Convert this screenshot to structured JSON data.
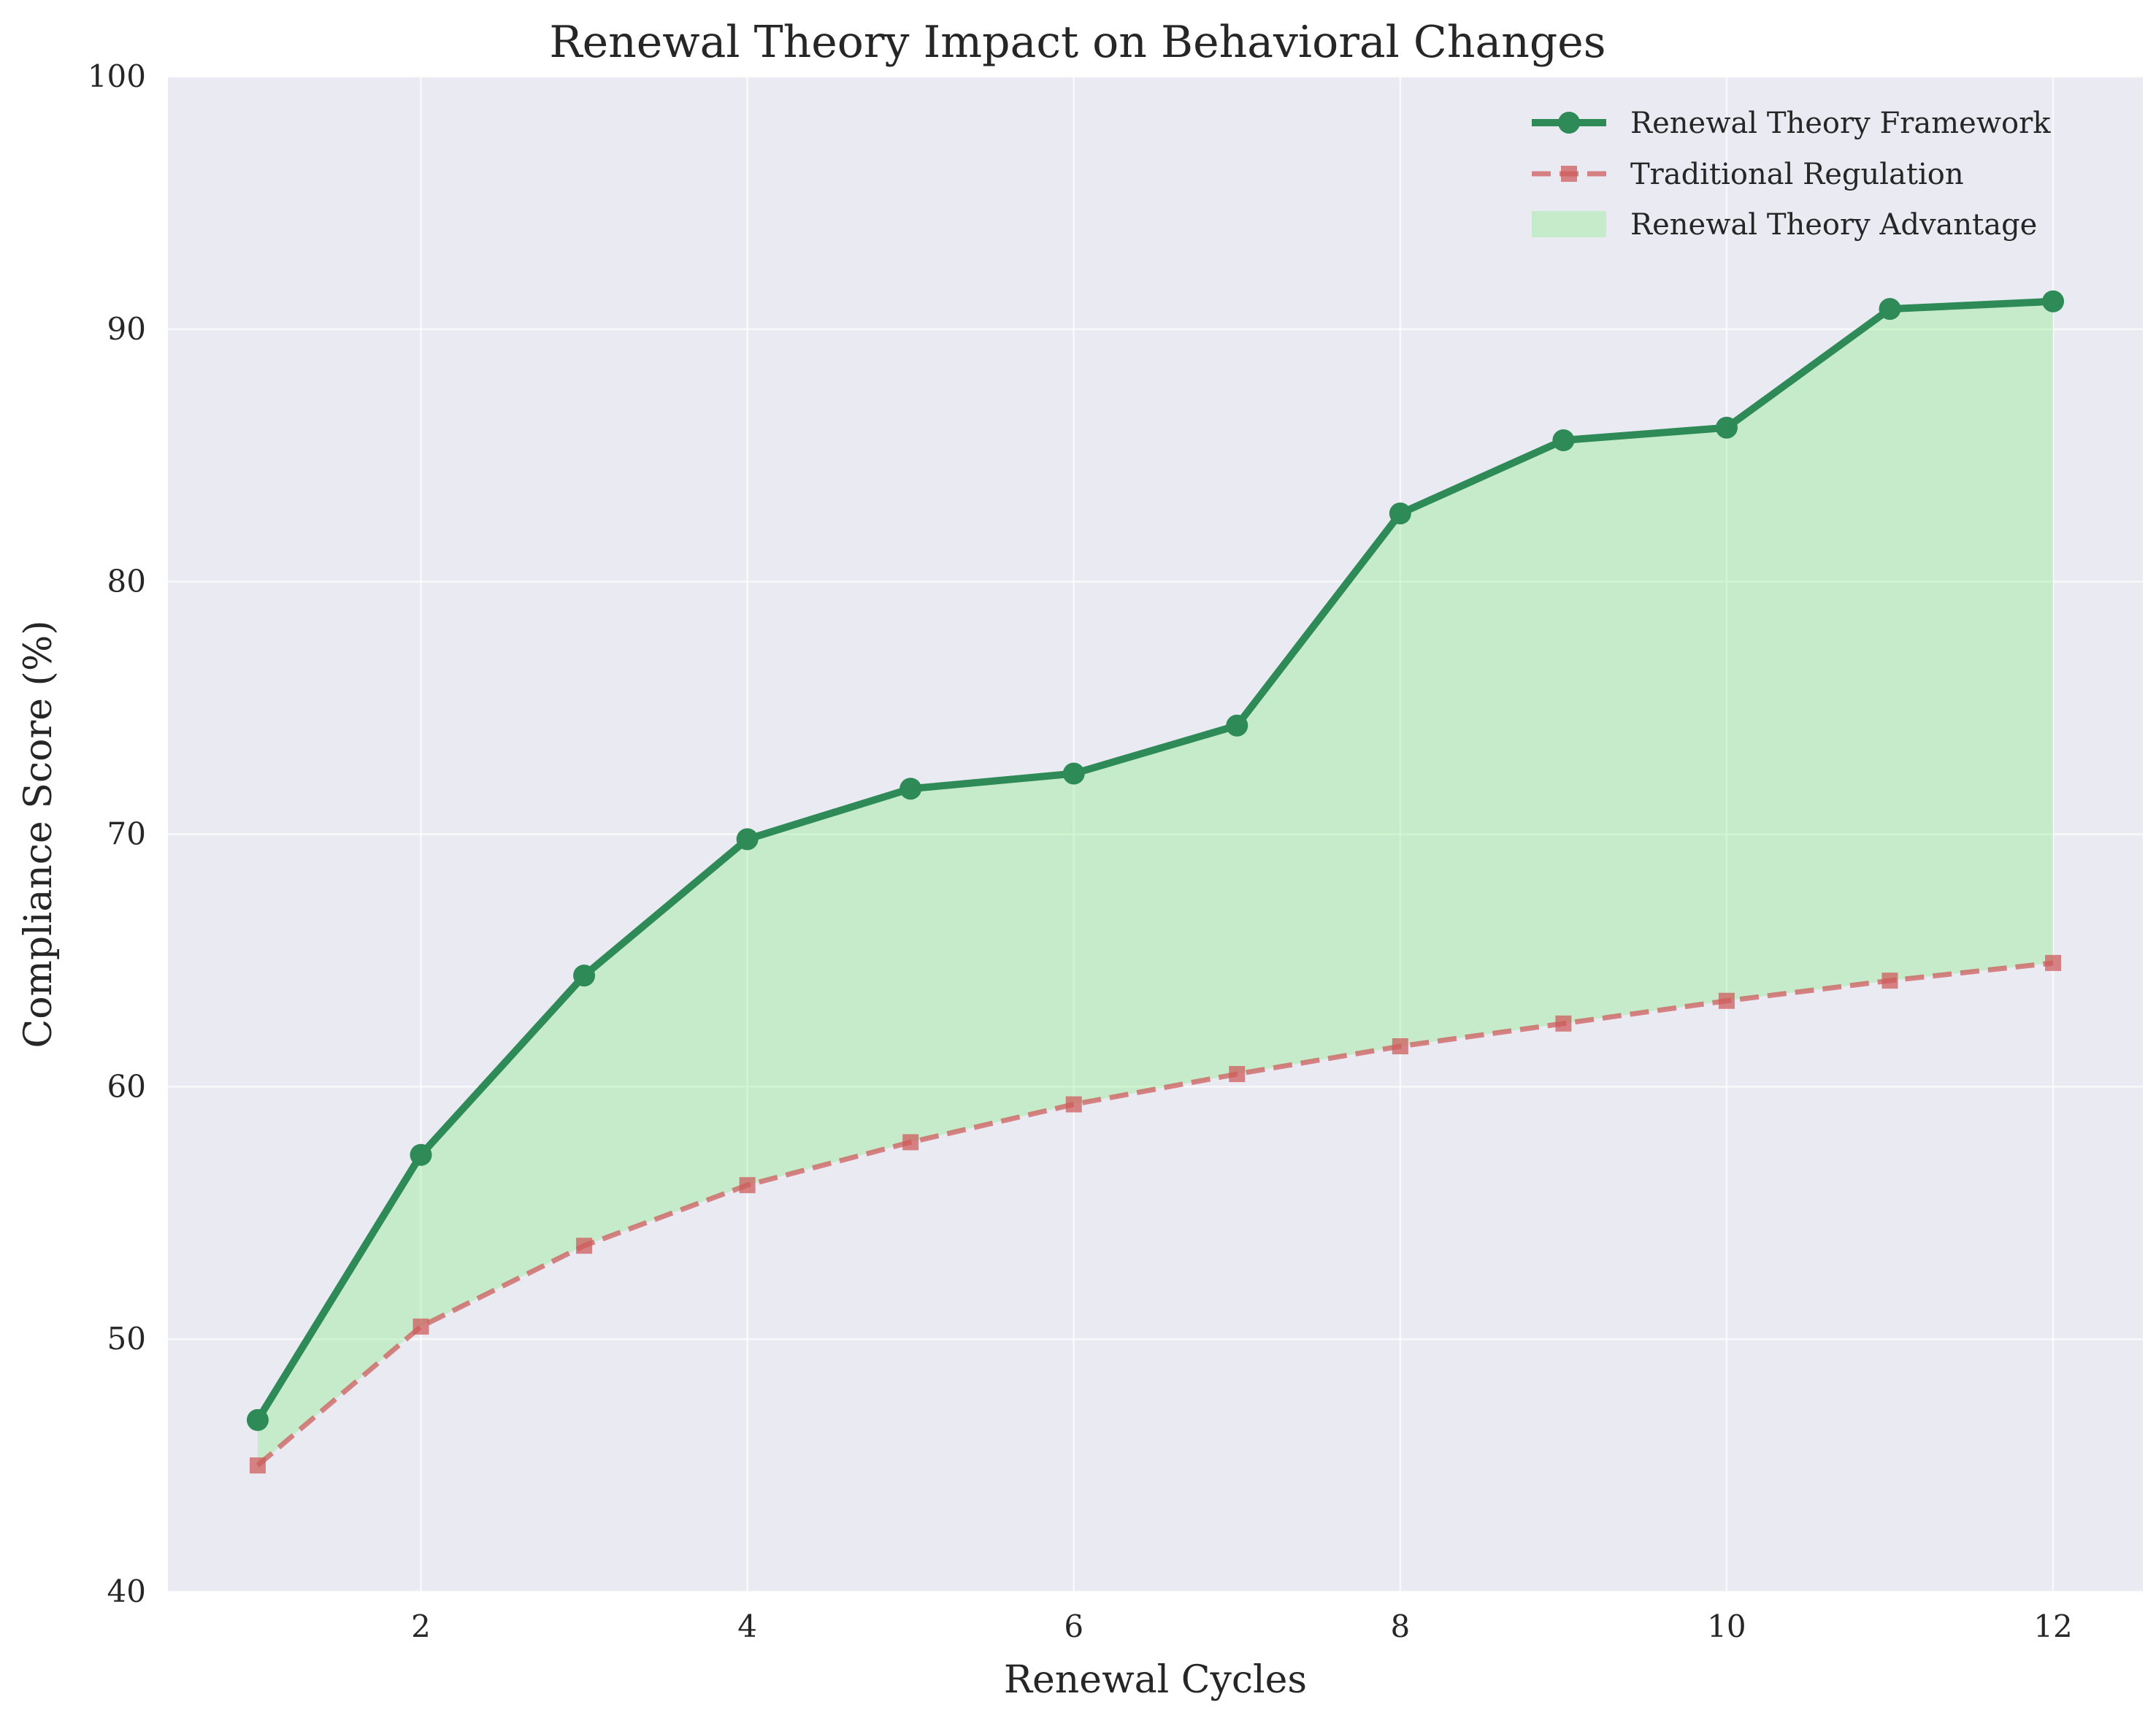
{
  "chart_data": {
    "type": "line",
    "title": "Renewal Theory Impact on Behavioral Changes",
    "xlabel": "Renewal Cycles",
    "ylabel": "Compliance Score (%)",
    "x": [
      1,
      2,
      3,
      4,
      5,
      6,
      7,
      8,
      9,
      10,
      11,
      12
    ],
    "xlim": [
      0.45,
      12.55
    ],
    "ylim": [
      40,
      100
    ],
    "x_ticks": [
      2,
      4,
      6,
      8,
      10,
      12
    ],
    "y_ticks": [
      40,
      50,
      60,
      70,
      80,
      90,
      100
    ],
    "grid": true,
    "legend_position": "top-right",
    "series": [
      {
        "name": "Renewal Theory Framework",
        "values": [
          46.8,
          57.3,
          64.4,
          69.8,
          71.8,
          72.4,
          74.3,
          82.7,
          85.6,
          86.1,
          90.8,
          91.1
        ],
        "color": "#2e8b57",
        "style": "solid",
        "marker": "circle"
      },
      {
        "name": "Traditional Regulation",
        "values": [
          45.0,
          50.5,
          53.7,
          56.1,
          57.8,
          59.3,
          60.5,
          61.6,
          62.5,
          63.4,
          64.2,
          64.9
        ],
        "color": "#cd5c5c",
        "style": "dashed",
        "marker": "square"
      }
    ],
    "fill_between": {
      "name": "Renewal Theory Advantage",
      "color": "#90ee90"
    },
    "background_color": "#eaeaf2"
  }
}
